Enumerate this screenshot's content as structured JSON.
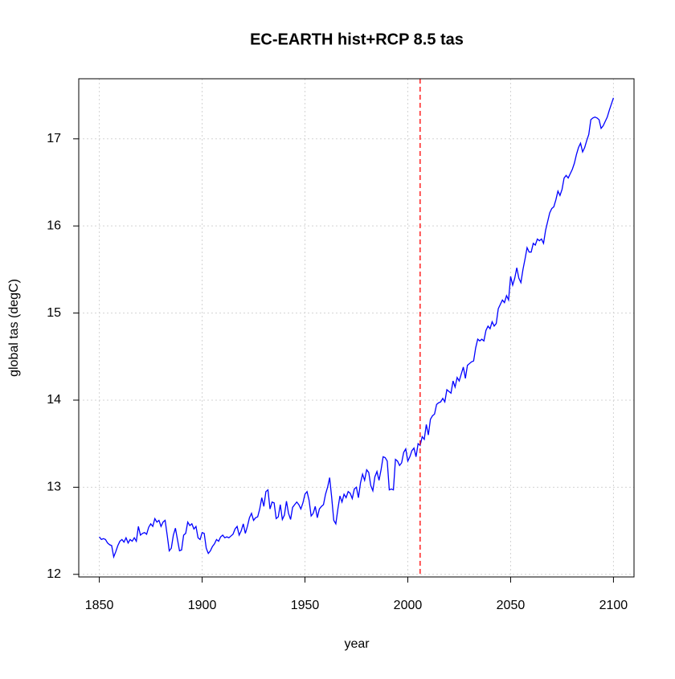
{
  "chart_data": {
    "type": "line",
    "title": "EC-EARTH hist+RCP 8.5 tas",
    "xlabel": "year",
    "ylabel": "global tas (degC)",
    "x": [
      1850,
      1851,
      1852,
      1853,
      1854,
      1855,
      1856,
      1857,
      1858,
      1859,
      1860,
      1861,
      1862,
      1863,
      1864,
      1865,
      1866,
      1867,
      1868,
      1869,
      1870,
      1871,
      1872,
      1873,
      1874,
      1875,
      1876,
      1877,
      1878,
      1879,
      1880,
      1881,
      1882,
      1883,
      1884,
      1885,
      1886,
      1887,
      1888,
      1889,
      1890,
      1891,
      1892,
      1893,
      1894,
      1895,
      1896,
      1897,
      1898,
      1899,
      1900,
      1901,
      1902,
      1903,
      1904,
      1905,
      1906,
      1907,
      1908,
      1909,
      1910,
      1911,
      1912,
      1913,
      1914,
      1915,
      1916,
      1917,
      1918,
      1919,
      1920,
      1921,
      1922,
      1923,
      1924,
      1925,
      1926,
      1927,
      1928,
      1929,
      1930,
      1931,
      1932,
      1933,
      1934,
      1935,
      1936,
      1937,
      1938,
      1939,
      1940,
      1941,
      1942,
      1943,
      1944,
      1945,
      1946,
      1947,
      1948,
      1949,
      1950,
      1951,
      1952,
      1953,
      1954,
      1955,
      1956,
      1957,
      1958,
      1959,
      1960,
      1961,
      1962,
      1963,
      1964,
      1965,
      1966,
      1967,
      1968,
      1969,
      1970,
      1971,
      1972,
      1973,
      1974,
      1975,
      1976,
      1977,
      1978,
      1979,
      1980,
      1981,
      1982,
      1983,
      1984,
      1985,
      1986,
      1987,
      1988,
      1989,
      1990,
      1991,
      1992,
      1993,
      1994,
      1995,
      1996,
      1997,
      1998,
      1999,
      2000,
      2001,
      2002,
      2003,
      2004,
      2005,
      2006,
      2007,
      2008,
      2009,
      2010,
      2011,
      2012,
      2013,
      2014,
      2015,
      2016,
      2017,
      2018,
      2019,
      2020,
      2021,
      2022,
      2023,
      2024,
      2025,
      2026,
      2027,
      2028,
      2029,
      2030,
      2031,
      2032,
      2033,
      2034,
      2035,
      2036,
      2037,
      2038,
      2039,
      2040,
      2041,
      2042,
      2043,
      2044,
      2045,
      2046,
      2047,
      2048,
      2049,
      2050,
      2051,
      2052,
      2053,
      2054,
      2055,
      2056,
      2057,
      2058,
      2059,
      2060,
      2061,
      2062,
      2063,
      2064,
      2065,
      2066,
      2067,
      2068,
      2069,
      2070,
      2071,
      2072,
      2073,
      2074,
      2075,
      2076,
      2077,
      2078,
      2079,
      2080,
      2081,
      2082,
      2083,
      2084,
      2085,
      2086,
      2087,
      2088,
      2089,
      2090,
      2091,
      2092,
      2093,
      2094,
      2095,
      2096,
      2097,
      2098,
      2099,
      2100
    ],
    "series": [
      {
        "name": "tas",
        "color": "#0000ff",
        "values": [
          12.43,
          12.4,
          12.41,
          12.4,
          12.36,
          12.34,
          12.33,
          12.2,
          12.26,
          12.33,
          12.38,
          12.4,
          12.37,
          12.42,
          12.36,
          12.4,
          12.38,
          12.42,
          12.38,
          12.55,
          12.45,
          12.47,
          12.48,
          12.46,
          12.54,
          12.58,
          12.55,
          12.64,
          12.6,
          12.62,
          12.55,
          12.6,
          12.62,
          12.45,
          12.27,
          12.3,
          12.45,
          12.53,
          12.4,
          12.27,
          12.28,
          12.45,
          12.47,
          12.6,
          12.56,
          12.58,
          12.52,
          12.55,
          12.42,
          12.4,
          12.48,
          12.47,
          12.3,
          12.24,
          12.27,
          12.32,
          12.35,
          12.4,
          12.38,
          12.43,
          12.45,
          12.42,
          12.43,
          12.42,
          12.44,
          12.46,
          12.52,
          12.55,
          12.45,
          12.5,
          12.58,
          12.47,
          12.55,
          12.65,
          12.7,
          12.62,
          12.65,
          12.66,
          12.75,
          12.88,
          12.78,
          12.95,
          12.97,
          12.75,
          12.83,
          12.82,
          12.64,
          12.66,
          12.8,
          12.63,
          12.68,
          12.84,
          12.7,
          12.63,
          12.77,
          12.8,
          12.83,
          12.8,
          12.75,
          12.82,
          12.92,
          12.95,
          12.85,
          12.67,
          12.7,
          12.78,
          12.65,
          12.75,
          12.78,
          12.8,
          12.92,
          13.0,
          13.11,
          12.88,
          12.62,
          12.58,
          12.75,
          12.9,
          12.83,
          12.92,
          12.88,
          12.95,
          12.93,
          12.87,
          12.98,
          13.0,
          12.88,
          13.05,
          13.15,
          13.08,
          13.2,
          13.17,
          13.02,
          12.96,
          13.12,
          13.18,
          13.08,
          13.2,
          13.35,
          13.34,
          13.3,
          12.97,
          12.98,
          12.97,
          13.32,
          13.3,
          13.25,
          13.28,
          13.4,
          13.44,
          13.3,
          13.35,
          13.42,
          13.45,
          13.35,
          13.5,
          13.48,
          13.58,
          13.55,
          13.72,
          13.6,
          13.78,
          13.82,
          13.84,
          13.95,
          13.97,
          13.98,
          14.02,
          13.98,
          14.12,
          14.1,
          14.08,
          14.22,
          14.15,
          14.26,
          14.22,
          14.3,
          14.38,
          14.25,
          14.4,
          14.42,
          14.44,
          14.45,
          14.6,
          14.7,
          14.68,
          14.7,
          14.68,
          14.8,
          14.85,
          14.82,
          14.9,
          14.85,
          14.88,
          15.05,
          15.1,
          15.15,
          15.12,
          15.2,
          15.15,
          15.42,
          15.32,
          15.4,
          15.52,
          15.4,
          15.35,
          15.5,
          15.62,
          15.75,
          15.7,
          15.7,
          15.8,
          15.78,
          15.85,
          15.83,
          15.85,
          15.8,
          15.95,
          16.05,
          16.15,
          16.2,
          16.22,
          16.3,
          16.4,
          16.35,
          16.42,
          16.55,
          16.58,
          16.55,
          16.6,
          16.65,
          16.72,
          16.82,
          16.9,
          16.95,
          16.85,
          16.9,
          16.98,
          17.05,
          17.22,
          17.24,
          17.25,
          17.24,
          17.22,
          17.12,
          17.15,
          17.2,
          17.25,
          17.33,
          17.4,
          17.47
        ]
      }
    ],
    "vline": {
      "x": 2006,
      "color": "#ff0000"
    },
    "xlim": [
      1840,
      2110
    ],
    "xticks": [
      1850,
      1900,
      1950,
      2000,
      2050,
      2100
    ],
    "ylim": [
      11.97,
      17.69
    ],
    "yticks": [
      12,
      13,
      14,
      15,
      16,
      17
    ],
    "grid": true
  }
}
